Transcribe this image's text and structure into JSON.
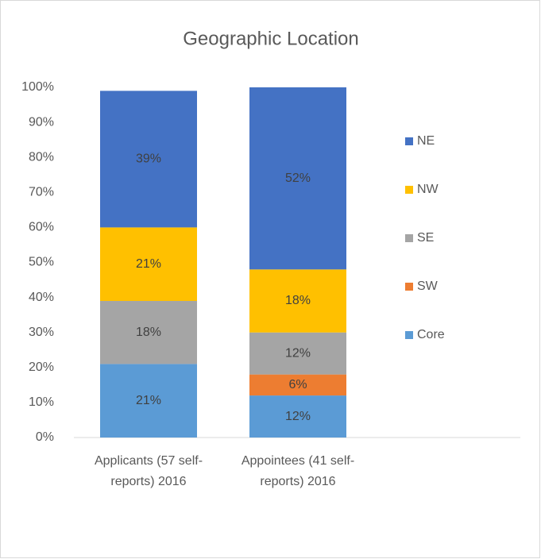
{
  "chart_data": {
    "type": "stacked_bar",
    "title": "Geographic Location",
    "categories": [
      "Applicants (57 self-reports) 2016",
      "Appointees (41 self-reports) 2016"
    ],
    "series": [
      {
        "name": "Core",
        "color": "#5b9bd5",
        "values": [
          21,
          12
        ],
        "value_labels": [
          "21%",
          "12%"
        ]
      },
      {
        "name": "SW",
        "color": "#ed7d31",
        "values": [
          null,
          6
        ],
        "value_labels": [
          null,
          "6%"
        ]
      },
      {
        "name": "SE",
        "color": "#a5a5a5",
        "values": [
          18,
          12
        ],
        "value_labels": [
          "18%",
          "12%"
        ]
      },
      {
        "name": "NW",
        "color": "#ffc000",
        "values": [
          21,
          18
        ],
        "value_labels": [
          "21%",
          "18%"
        ]
      },
      {
        "name": "NE",
        "color": "#4472c4",
        "values": [
          39,
          52
        ],
        "value_labels": [
          "39%",
          "52%"
        ]
      }
    ],
    "ylim": [
      0,
      100
    ],
    "yticks": [
      {
        "value": 0,
        "label": "0%"
      },
      {
        "value": 10,
        "label": "10%"
      },
      {
        "value": 20,
        "label": "20%"
      },
      {
        "value": 30,
        "label": "30%"
      },
      {
        "value": 40,
        "label": "40%"
      },
      {
        "value": 50,
        "label": "50%"
      },
      {
        "value": 60,
        "label": "60%"
      },
      {
        "value": 70,
        "label": "70%"
      },
      {
        "value": 80,
        "label": "80%"
      },
      {
        "value": 90,
        "label": "90%"
      },
      {
        "value": 100,
        "label": "100%"
      }
    ],
    "legend": "right"
  }
}
